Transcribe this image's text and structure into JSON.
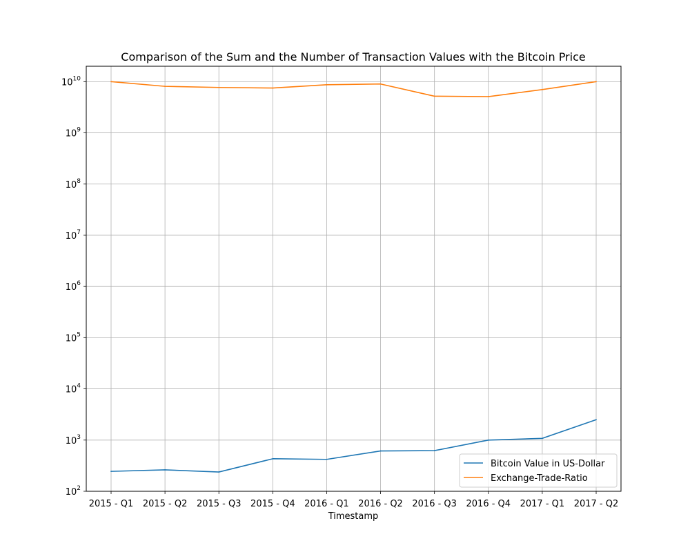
{
  "chart_data": {
    "type": "line",
    "title": "Comparison of the Sum and the Number of Transaction Values with the Bitcoin Price",
    "xlabel": "Timestamp",
    "ylabel": "",
    "yscale": "log",
    "ylim": [
      100,
      20000000000
    ],
    "yticks": [
      {
        "value": 100,
        "mantissa": "10",
        "exponent": "2"
      },
      {
        "value": 1000,
        "mantissa": "10",
        "exponent": "3"
      },
      {
        "value": 10000,
        "mantissa": "10",
        "exponent": "4"
      },
      {
        "value": 100000,
        "mantissa": "10",
        "exponent": "5"
      },
      {
        "value": 1000000,
        "mantissa": "10",
        "exponent": "6"
      },
      {
        "value": 10000000,
        "mantissa": "10",
        "exponent": "7"
      },
      {
        "value": 100000000,
        "mantissa": "10",
        "exponent": "8"
      },
      {
        "value": 1000000000,
        "mantissa": "10",
        "exponent": "9"
      },
      {
        "value": 10000000000,
        "mantissa": "10",
        "exponent": "10"
      }
    ],
    "grid": true,
    "legend_position": "lower-right",
    "categories": [
      "2015 - Q1",
      "2015 - Q2",
      "2015 - Q3",
      "2015 - Q4",
      "2016 - Q1",
      "2016 - Q2",
      "2016 - Q3",
      "2016 - Q4",
      "2017 - Q1",
      "2017 - Q2"
    ],
    "series": [
      {
        "name": "Bitcoin Value in US-Dollar",
        "color": "#1f77b4",
        "values": [
          245,
          262,
          238,
          432,
          420,
          613,
          622,
          1000,
          1080,
          2500
        ]
      },
      {
        "name": "Exchange-Trade-Ratio",
        "color": "#ff7f0e",
        "values": [
          10000000000,
          8100000000,
          7700000000,
          7500000000,
          8700000000,
          9000000000,
          5200000000,
          5100000000,
          7000000000,
          10000000000
        ]
      }
    ]
  }
}
